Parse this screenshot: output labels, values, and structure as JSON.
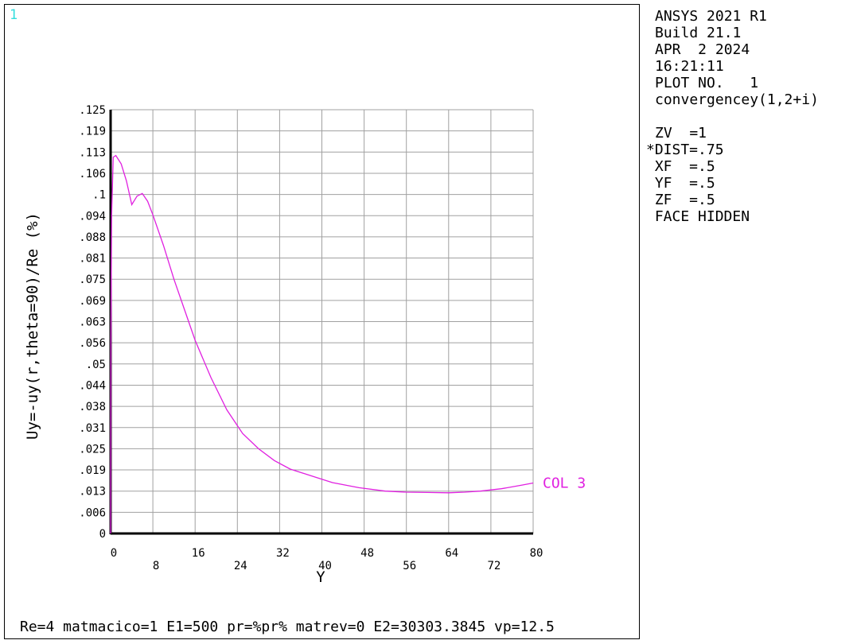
{
  "window_number": "1",
  "info": {
    "lines": [
      "ANSYS 2021 R1",
      "Build 21.1",
      "APR  2 2024",
      "16:21:11",
      "PLOT NO.   1",
      "convergencey(1,2+i)"
    ],
    "view_lines": [
      "ZV  =1",
      "*DIST=.75",
      " XF  =.5",
      " YF  =.5",
      " ZF  =.5",
      " FACE HIDDEN"
    ]
  },
  "footer": "Re=4 matmacico=1 E1=500 pr=%pr% matrev=0 E2=30303.3845 vp=12.5",
  "colors": {
    "series": "#e020e0",
    "grid": "#a0a0a0",
    "axis": "#000000",
    "window_number": "#33dddd"
  },
  "chart_data": {
    "type": "line",
    "xlabel": "Y",
    "ylabel": "Uy=-uy(r,theta=90)/Re (%)",
    "xlim": [
      0,
      80
    ],
    "ylim": [
      0,
      0.125
    ],
    "grid": true,
    "x_ticks_row1": [
      "0",
      "16",
      "32",
      "48",
      "64",
      "80"
    ],
    "x_ticks_row2": [
      "8",
      "24",
      "40",
      "56",
      "72"
    ],
    "y_ticks": [
      "0",
      ".006",
      ".013",
      ".019",
      ".025",
      ".031",
      ".038",
      ".044",
      ".05",
      ".056",
      ".063",
      ".069",
      ".075",
      ".081",
      ".088",
      ".094",
      ".1",
      ".106",
      ".113",
      ".119",
      ".125"
    ],
    "series": [
      {
        "name": "COL  3",
        "x": [
          0,
          0.05,
          0.2,
          0.5,
          1,
          2,
          3,
          4,
          5,
          6,
          7,
          8,
          10,
          12,
          14,
          16,
          19,
          22,
          25,
          28,
          31,
          34,
          38,
          42,
          47,
          52,
          56,
          60,
          64,
          67,
          70,
          74,
          78,
          80
        ],
        "y": [
          0,
          0.056,
          0.094,
          0.111,
          0.1115,
          0.109,
          0.104,
          0.097,
          0.0995,
          0.1003,
          0.098,
          0.094,
          0.085,
          0.075,
          0.066,
          0.057,
          0.046,
          0.0365,
          0.0295,
          0.025,
          0.0215,
          0.019,
          0.017,
          0.015,
          0.0135,
          0.0125,
          0.0122,
          0.0121,
          0.012,
          0.0122,
          0.0125,
          0.0132,
          0.0143,
          0.0149
        ]
      }
    ]
  }
}
